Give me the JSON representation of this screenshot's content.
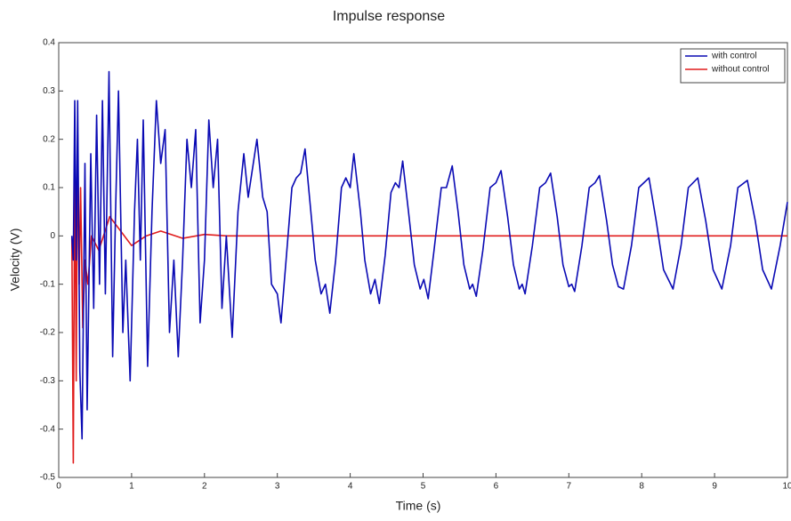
{
  "chart_data": {
    "type": "line",
    "title": "Impulse response",
    "xlabel": "Time (s)",
    "ylabel": "Velocity (V)",
    "xlim": [
      0,
      10
    ],
    "ylim": [
      -0.5,
      0.4
    ],
    "xticks": [
      0,
      1,
      2,
      3,
      4,
      5,
      6,
      7,
      8,
      9,
      10
    ],
    "yticks": [
      -0.5,
      -0.4,
      -0.3,
      -0.2,
      -0.1,
      0,
      0.1,
      0.2,
      0.3,
      0.4
    ],
    "legend": "upper right",
    "grid": false,
    "series": [
      {
        "name": "with control",
        "color": "#0a0ab4",
        "x": [
          0.18,
          0.2,
          0.22,
          0.24,
          0.26,
          0.29,
          0.32,
          0.36,
          0.39,
          0.44,
          0.48,
          0.52,
          0.56,
          0.6,
          0.64,
          0.69,
          0.74,
          0.78,
          0.82,
          0.88,
          0.92,
          0.98,
          1.04,
          1.08,
          1.12,
          1.16,
          1.22,
          1.28,
          1.34,
          1.4,
          1.46,
          1.52,
          1.58,
          1.64,
          1.7,
          1.76,
          1.82,
          1.88,
          1.94,
          2.0,
          2.06,
          2.12,
          2.18,
          2.24,
          2.3,
          2.38,
          2.46,
          2.54,
          2.6,
          2.72,
          2.8,
          2.86,
          2.92,
          3.0,
          3.05,
          3.12,
          3.2,
          3.26,
          3.32,
          3.38,
          3.46,
          3.52,
          3.6,
          3.66,
          3.72,
          3.8,
          3.88,
          3.94,
          4.0,
          4.05,
          4.14,
          4.2,
          4.28,
          4.34,
          4.4,
          4.48,
          4.56,
          4.62,
          4.67,
          4.72,
          4.8,
          4.88,
          4.96,
          5.01,
          5.07,
          5.15,
          5.25,
          5.32,
          5.4,
          5.48,
          5.56,
          5.64,
          5.68,
          5.73,
          5.82,
          5.92,
          6.0,
          6.07,
          6.16,
          6.24,
          6.32,
          6.36,
          6.4,
          6.5,
          6.6,
          6.68,
          6.75,
          6.84,
          6.92,
          7.0,
          7.04,
          7.08,
          7.18,
          7.28,
          7.36,
          7.42,
          7.52,
          7.6,
          7.68,
          7.75,
          7.86,
          7.96,
          8.1,
          8.2,
          8.3,
          8.43,
          8.54,
          8.64,
          8.77,
          8.88,
          8.98,
          9.1,
          9.22,
          9.32,
          9.45,
          9.56,
          9.66,
          9.78,
          9.9,
          10
        ],
        "values": [
          0,
          -0.05,
          0.28,
          -0.05,
          0.28,
          -0.28,
          -0.42,
          0.15,
          -0.36,
          0.17,
          -0.15,
          0.25,
          -0.1,
          0.28,
          -0.12,
          0.34,
          -0.25,
          0.05,
          0.3,
          -0.2,
          -0.05,
          -0.3,
          0.05,
          0.2,
          -0.05,
          0.24,
          -0.27,
          0.05,
          0.28,
          0.15,
          0.22,
          -0.2,
          -0.05,
          -0.25,
          -0.05,
          0.2,
          0.1,
          0.22,
          -0.18,
          -0.05,
          0.24,
          0.1,
          0.2,
          -0.15,
          0,
          -0.21,
          0.05,
          0.17,
          0.08,
          0.2,
          0.08,
          0.05,
          -0.1,
          -0.12,
          -0.18,
          -0.05,
          0.1,
          0.12,
          0.13,
          0.18,
          0.05,
          -0.05,
          -0.12,
          -0.1,
          -0.16,
          -0.05,
          0.1,
          0.12,
          0.1,
          0.17,
          0.05,
          -0.05,
          -0.12,
          -0.09,
          -0.14,
          -0.04,
          0.09,
          0.11,
          0.1,
          0.155,
          0.05,
          -0.06,
          -0.11,
          -0.09,
          -0.13,
          -0.03,
          0.1,
          0.1,
          0.145,
          0.05,
          -0.06,
          -0.11,
          -0.1,
          -0.125,
          -0.03,
          0.1,
          0.11,
          0.135,
          0.04,
          -0.06,
          -0.11,
          -0.1,
          -0.12,
          -0.02,
          0.1,
          0.11,
          0.13,
          0.04,
          -0.06,
          -0.105,
          -0.1,
          -0.115,
          -0.02,
          0.1,
          0.11,
          0.125,
          0.03,
          -0.06,
          -0.105,
          -0.11,
          -0.02,
          0.1,
          0.12,
          0.03,
          -0.07,
          -0.11,
          -0.02,
          0.1,
          0.12,
          0.03,
          -0.07,
          -0.11,
          -0.02,
          0.1,
          0.115,
          0.03,
          -0.07,
          -0.11,
          -0.02,
          0.07
        ]
      },
      {
        "name": "without control",
        "color": "#e01c1c",
        "x": [
          0.18,
          0.2,
          0.22,
          0.24,
          0.26,
          0.28,
          0.3,
          0.33,
          0.36,
          0.4,
          0.45,
          0.55,
          0.7,
          0.85,
          1.0,
          1.2,
          1.4,
          1.7,
          2.0,
          2.3,
          10
        ],
        "values": [
          0,
          -0.47,
          0.17,
          -0.3,
          0.21,
          -0.1,
          0.1,
          -0.19,
          -0.05,
          -0.1,
          0,
          -0.03,
          0.04,
          0.01,
          -0.02,
          0,
          0.01,
          -0.005,
          0.003,
          0,
          0
        ]
      }
    ]
  }
}
